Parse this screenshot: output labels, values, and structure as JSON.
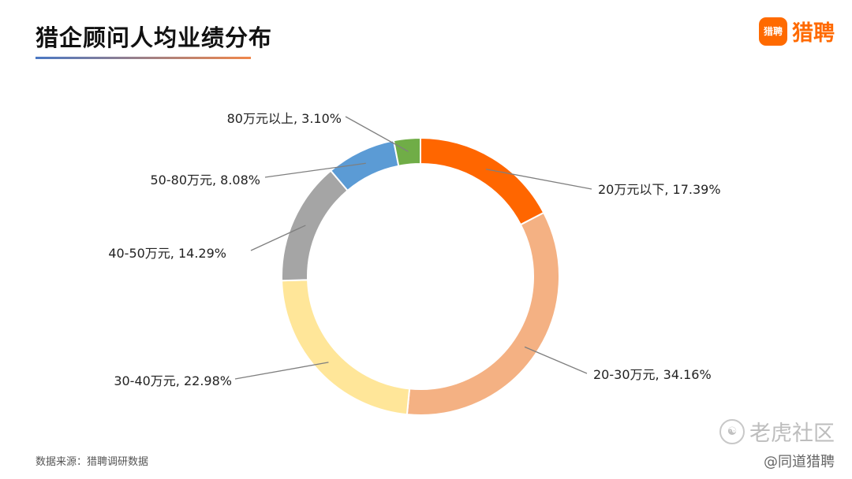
{
  "header": {
    "title": "猎企顾问人均业绩分布",
    "logo_badge_text": "猎聘",
    "logo_text": "猎聘"
  },
  "footer": {
    "source": "数据来源：猎聘调研数据",
    "watermark_text": "老虎社区",
    "watermark_icon": "tiger-icon",
    "credit": "@同道猎聘"
  },
  "chart_data": {
    "type": "pie",
    "variant": "donut",
    "title": "猎企顾问人均业绩分布",
    "start": "12 o'clock, clockwise",
    "labels_format": "category, percent",
    "slices": [
      {
        "label": "20万元以下",
        "value": 17.39,
        "display": "20万元以下, 17.39%",
        "color": "#ff6600"
      },
      {
        "label": "20-30万元",
        "value": 34.16,
        "display": "20-30万元, 34.16%",
        "color": "#f4b183"
      },
      {
        "label": "30-40万元",
        "value": 22.98,
        "display": "30-40万元, 22.98%",
        "color": "#ffe699"
      },
      {
        "label": "40-50万元",
        "value": 14.29,
        "display": "40-50万元, 14.29%",
        "color": "#a5a5a5"
      },
      {
        "label": "50-80万元",
        "value": 8.08,
        "display": "50-80万元, 8.08%",
        "color": "#5b9bd5"
      },
      {
        "label": "80万元以上",
        "value": 3.1,
        "display": "80万元以上, 3.10%",
        "color": "#70ad47"
      }
    ]
  }
}
